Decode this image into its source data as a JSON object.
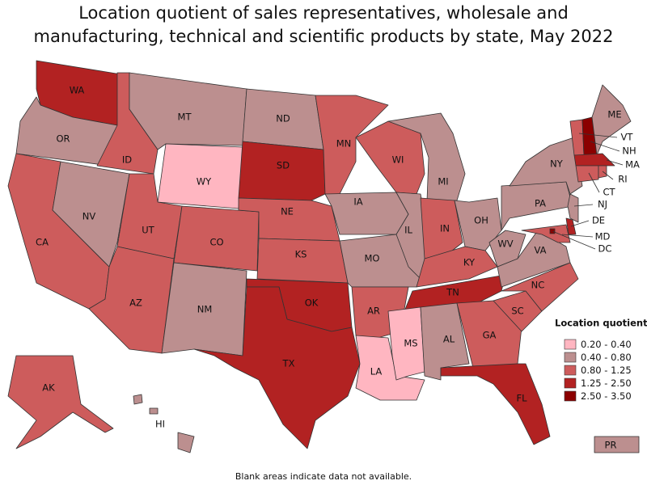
{
  "chart_data": {
    "type": "choropleth",
    "title": "Location quotient of sales representatives, wholesale and manufacturing, technical and scientific products by state, May 2022",
    "legend_title": "Location quotient",
    "legend": [
      {
        "label": "0.20 - 0.40",
        "color": "#ffb6c1"
      },
      {
        "label": "0.40 - 0.80",
        "color": "#bc8f8f"
      },
      {
        "label": "0.80 - 1.25",
        "color": "#cd5c5c"
      },
      {
        "label": "1.25 - 2.50",
        "color": "#b22222"
      },
      {
        "label": "2.50 - 3.50",
        "color": "#8b0000"
      }
    ],
    "note": "Blank areas indicate data not available.",
    "states": [
      {
        "label": "WA",
        "color": "#b22222"
      },
      {
        "label": "OR",
        "color": "#bc8f8f"
      },
      {
        "label": "CA",
        "color": "#cd5c5c"
      },
      {
        "label": "NV",
        "color": "#bc8f8f"
      },
      {
        "label": "ID",
        "color": "#cd5c5c"
      },
      {
        "label": "MT",
        "color": "#bc8f8f"
      },
      {
        "label": "WY",
        "color": "#ffb6c1"
      },
      {
        "label": "UT",
        "color": "#cd5c5c"
      },
      {
        "label": "AZ",
        "color": "#cd5c5c"
      },
      {
        "label": "CO",
        "color": "#cd5c5c"
      },
      {
        "label": "NM",
        "color": "#bc8f8f"
      },
      {
        "label": "ND",
        "color": "#bc8f8f"
      },
      {
        "label": "SD",
        "color": "#b22222"
      },
      {
        "label": "NE",
        "color": "#cd5c5c"
      },
      {
        "label": "KS",
        "color": "#cd5c5c"
      },
      {
        "label": "OK",
        "color": "#b22222"
      },
      {
        "label": "TX",
        "color": "#b22222"
      },
      {
        "label": "MN",
        "color": "#cd5c5c"
      },
      {
        "label": "IA",
        "color": "#bc8f8f"
      },
      {
        "label": "MO",
        "color": "#bc8f8f"
      },
      {
        "label": "AR",
        "color": "#cd5c5c"
      },
      {
        "label": "LA",
        "color": "#ffb6c1"
      },
      {
        "label": "WI",
        "color": "#cd5c5c"
      },
      {
        "label": "IL",
        "color": "#bc8f8f"
      },
      {
        "label": "MI",
        "color": "#bc8f8f"
      },
      {
        "label": "IN",
        "color": "#cd5c5c"
      },
      {
        "label": "OH",
        "color": "#bc8f8f"
      },
      {
        "label": "KY",
        "color": "#cd5c5c"
      },
      {
        "label": "TN",
        "color": "#b22222"
      },
      {
        "label": "MS",
        "color": "#ffb6c1"
      },
      {
        "label": "AL",
        "color": "#bc8f8f"
      },
      {
        "label": "GA",
        "color": "#cd5c5c"
      },
      {
        "label": "FL",
        "color": "#b22222"
      },
      {
        "label": "SC",
        "color": "#cd5c5c"
      },
      {
        "label": "NC",
        "color": "#cd5c5c"
      },
      {
        "label": "VA",
        "color": "#bc8f8f"
      },
      {
        "label": "WV",
        "color": "#bc8f8f"
      },
      {
        "label": "PA",
        "color": "#bc8f8f"
      },
      {
        "label": "NY",
        "color": "#bc8f8f"
      },
      {
        "label": "VT",
        "color": "#cd5c5c"
      },
      {
        "label": "NH",
        "color": "#8b0000"
      },
      {
        "label": "ME",
        "color": "#bc8f8f"
      },
      {
        "label": "MA",
        "color": "#b22222"
      },
      {
        "label": "CT",
        "color": "#cd5c5c"
      },
      {
        "label": "RI",
        "color": "#cd5c5c"
      },
      {
        "label": "NJ",
        "color": "#bc8f8f"
      },
      {
        "label": "DE",
        "color": "#b22222"
      },
      {
        "label": "MD",
        "color": "#cd5c5c"
      },
      {
        "label": "DC",
        "color": "#8b0000"
      },
      {
        "label": "AK",
        "color": "#cd5c5c"
      },
      {
        "label": "HI",
        "color": "#bc8f8f"
      },
      {
        "label": "PR",
        "color": "#bc8f8f"
      }
    ]
  }
}
